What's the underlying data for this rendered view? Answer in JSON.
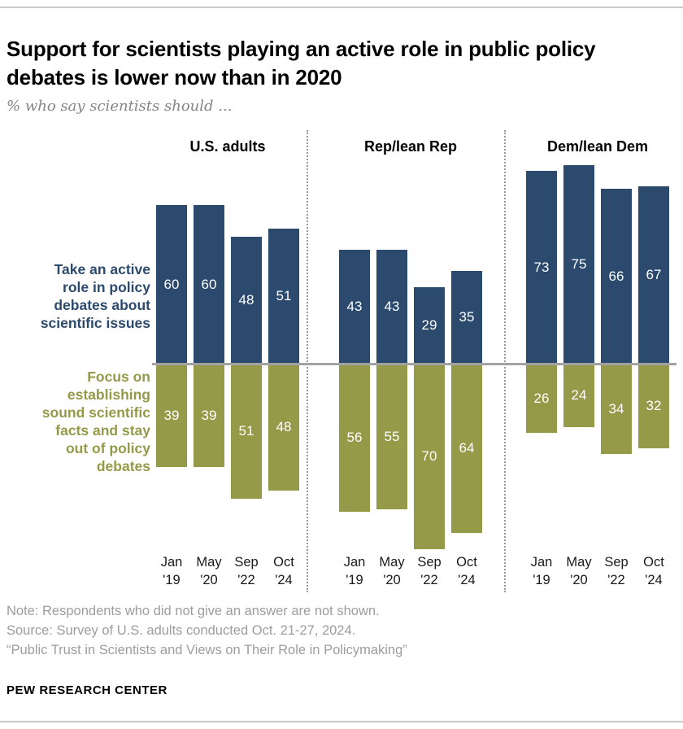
{
  "title": "Support for scientists playing an active role in public policy debates is lower now than in 2020",
  "subtitle": "% who say scientists should ...",
  "chart_data": {
    "type": "bar",
    "layout": "diverging-vertical",
    "groups": [
      "U.S. adults",
      "Rep/lean Rep",
      "Dem/lean Dem"
    ],
    "categories": [
      "Jan '19",
      "May '20",
      "Sep '22",
      "Oct '24"
    ],
    "tick_labels": [
      "Jan\n'19",
      "May\n'20",
      "Sep\n'22",
      "Oct\n'24"
    ],
    "value_range": [
      0,
      75
    ],
    "value_labels_shown": true,
    "legend_position": "left-of-plot",
    "series": [
      {
        "name": "Take an active role in policy debates about scientific issues",
        "label": "Take an active\nrole in policy\ndebates about\nscientific issues",
        "direction": "up",
        "color": "#2b4a6d",
        "values": [
          [
            60,
            60,
            48,
            51
          ],
          [
            43,
            43,
            29,
            35
          ],
          [
            73,
            75,
            66,
            67
          ]
        ]
      },
      {
        "name": "Focus on establishing sound scientific facts and stay out of policy debates",
        "label": "Focus on\nestablishing\nsound scientific\nfacts and stay\nout of policy\ndebates",
        "direction": "down",
        "color": "#949a48",
        "values": [
          [
            39,
            39,
            51,
            48
          ],
          [
            56,
            55,
            70,
            64
          ],
          [
            26,
            24,
            34,
            32
          ]
        ]
      }
    ]
  },
  "notes": [
    "Note: Respondents who did not give an answer are not shown.",
    "Source: Survey of U.S. adults conducted Oct. 21-27, 2024.",
    "“Public Trust in Scientists and Views on Their Role in Policymaking”"
  ],
  "footer": "PEW RESEARCH CENTER"
}
